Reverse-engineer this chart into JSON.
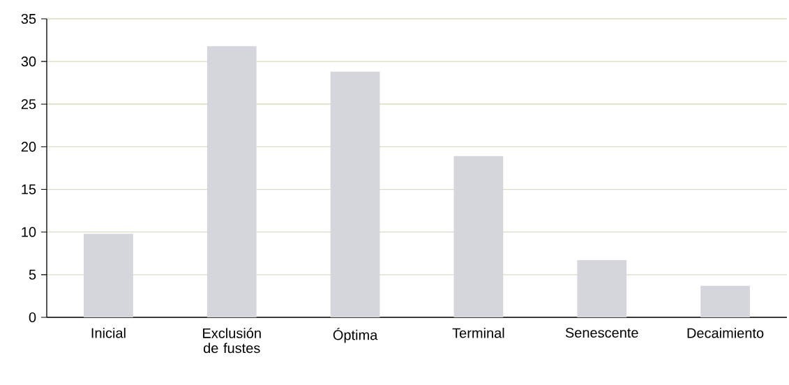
{
  "chart_data": {
    "type": "bar",
    "categories": [
      "Inicial",
      "Exclusión de fustes",
      "Óptima",
      "Terminal",
      "Senescente",
      "Decaimiento"
    ],
    "values": [
      9.8,
      31.8,
      28.8,
      18.9,
      6.7,
      3.7
    ],
    "color": "#d5d6dc",
    "ylim": [
      0,
      35
    ],
    "yticks": [
      0,
      5,
      10,
      15,
      20,
      25,
      30,
      35
    ],
    "grid": "y"
  }
}
